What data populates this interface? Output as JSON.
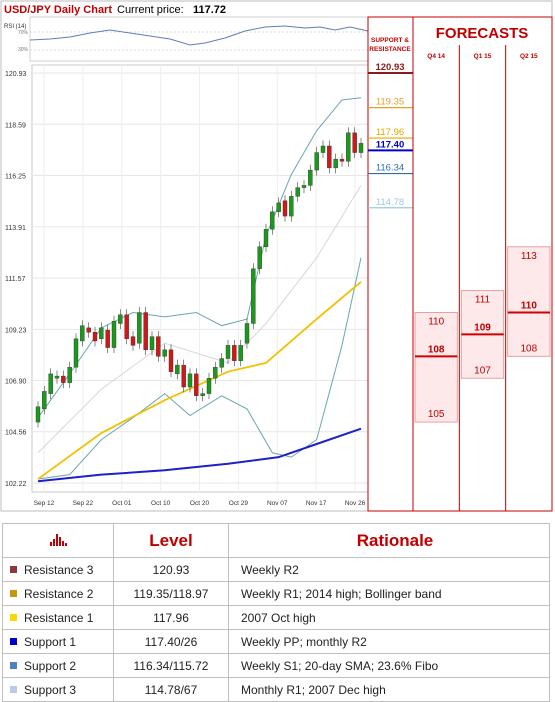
{
  "header": {
    "title": "USD/JPY Daily Chart",
    "price_label": "Current price:",
    "price_value": "117.72"
  },
  "rsi": {
    "label": "RSI (14)",
    "levels": [
      "70%",
      "30%"
    ]
  },
  "chart_data": {
    "type": "candlestick",
    "y_ticks": [
      "120.93",
      "118.59",
      "116.25",
      "113.91",
      "111.57",
      "109.23",
      "106.90",
      "104.56",
      "102.22"
    ],
    "ylim": [
      102.22,
      120.93
    ],
    "x_ticks": [
      "Sep 12",
      "Sep 22",
      "Oct 01",
      "Oct 10",
      "Oct 20",
      "Oct 29",
      "Nov 07",
      "Nov 17",
      "Nov 26"
    ],
    "candles": [
      [
        105.0,
        105.7
      ],
      [
        105.6,
        106.4
      ],
      [
        106.3,
        107.2
      ],
      [
        107.0,
        107.1
      ],
      [
        107.1,
        106.8
      ],
      [
        106.8,
        107.5
      ],
      [
        107.5,
        108.8
      ],
      [
        108.7,
        109.4
      ],
      [
        109.3,
        109.1
      ],
      [
        109.1,
        108.7
      ],
      [
        108.8,
        109.3
      ],
      [
        109.2,
        108.4
      ],
      [
        108.4,
        109.6
      ],
      [
        109.5,
        109.9
      ],
      [
        109.9,
        108.8
      ],
      [
        108.9,
        108.5
      ],
      [
        108.6,
        110.0
      ],
      [
        110.0,
        108.3
      ],
      [
        108.3,
        108.9
      ],
      [
        108.9,
        108.0
      ],
      [
        108.0,
        108.3
      ],
      [
        108.3,
        107.3
      ],
      [
        107.2,
        107.6
      ],
      [
        107.6,
        106.6
      ],
      [
        106.6,
        107.2
      ],
      [
        107.2,
        106.2
      ],
      [
        106.2,
        106.3
      ],
      [
        106.3,
        107.0
      ],
      [
        107.0,
        107.5
      ],
      [
        107.5,
        107.9
      ],
      [
        107.9,
        108.5
      ],
      [
        108.5,
        107.8
      ],
      [
        107.8,
        108.5
      ],
      [
        108.6,
        109.5
      ],
      [
        109.5,
        112.0
      ],
      [
        112.0,
        113.0
      ],
      [
        113.0,
        113.8
      ],
      [
        113.8,
        114.6
      ],
      [
        114.6,
        115.0
      ],
      [
        115.1,
        114.4
      ],
      [
        114.4,
        115.3
      ],
      [
        115.3,
        115.7
      ],
      [
        115.7,
        115.8
      ],
      [
        115.8,
        116.5
      ],
      [
        116.5,
        117.3
      ],
      [
        117.3,
        117.6
      ],
      [
        117.6,
        116.6
      ],
      [
        116.6,
        117.0
      ],
      [
        117.0,
        116.9
      ],
      [
        116.9,
        118.2
      ],
      [
        118.2,
        117.3
      ],
      [
        117.3,
        117.72
      ]
    ],
    "bollinger_upper": [
      [
        0,
        105.2
      ],
      [
        5,
        107.2
      ],
      [
        10,
        109.3
      ],
      [
        15,
        110.0
      ],
      [
        20,
        109.8
      ],
      [
        25,
        110.0
      ],
      [
        29,
        109.4
      ],
      [
        33,
        109.7
      ],
      [
        36,
        113.5
      ],
      [
        40,
        116.3
      ],
      [
        44,
        118.3
      ],
      [
        48,
        119.7
      ],
      [
        51,
        119.8
      ]
    ],
    "bollinger_lower": [
      [
        0,
        102.4
      ],
      [
        5,
        102.6
      ],
      [
        10,
        104.2
      ],
      [
        15,
        105.2
      ],
      [
        20,
        106.3
      ],
      [
        24,
        105.3
      ],
      [
        29,
        106.2
      ],
      [
        33,
        105.6
      ],
      [
        37,
        103.6
      ],
      [
        40,
        103.4
      ],
      [
        44,
        104.2
      ],
      [
        48,
        108.5
      ],
      [
        51,
        112.5
      ]
    ],
    "sma_mid": [
      [
        0,
        103.6
      ],
      [
        10,
        106.5
      ],
      [
        20,
        108.6
      ],
      [
        30,
        107.7
      ],
      [
        36,
        109.5
      ],
      [
        44,
        112.5
      ],
      [
        51,
        115.8
      ]
    ],
    "sma_yellow": [
      [
        0,
        102.4
      ],
      [
        10,
        104.5
      ],
      [
        20,
        106.0
      ],
      [
        30,
        107.3
      ],
      [
        36,
        107.7
      ],
      [
        44,
        109.7
      ],
      [
        51,
        111.4
      ]
    ],
    "sma_blue": [
      [
        0,
        102.3
      ],
      [
        10,
        102.6
      ],
      [
        20,
        102.8
      ],
      [
        30,
        103.1
      ],
      [
        38,
        103.4
      ],
      [
        44,
        104.0
      ],
      [
        51,
        104.7
      ]
    ]
  },
  "levels_panel": {
    "title": "SUPPORT & RESISTANCE",
    "levels": [
      {
        "label": "120.93",
        "value": 120.93,
        "color": "#8b1a1a"
      },
      {
        "label": "119.35",
        "value": 119.35,
        "color": "#e0a030"
      },
      {
        "label": "117.96",
        "value": 117.96,
        "color": "#e0a800"
      },
      {
        "label": "117.40",
        "value": 117.4,
        "color": "#0000cc"
      },
      {
        "label": "116.34",
        "value": 116.34,
        "color": "#2e6ea6"
      },
      {
        "label": "114.78",
        "value": 114.78,
        "color": "#9ac9e0"
      }
    ]
  },
  "forecasts": {
    "title": "FORECASTS",
    "columns": [
      {
        "label": "Q4 14",
        "high": 110,
        "median": 108,
        "low": 105
      },
      {
        "label": "Q1 15",
        "high": 111,
        "median": 109,
        "low": 107
      },
      {
        "label": "Q2 15",
        "high": 113,
        "median": 110,
        "low": 108
      }
    ]
  },
  "table": {
    "headers": [
      "",
      "Level",
      "Rationale"
    ],
    "rows": [
      {
        "name": "Resistance 3",
        "level": "120.93",
        "rationale": "Weekly R2",
        "color": "#8b3a3a"
      },
      {
        "name": "Resistance 2",
        "level": "119.35/118.97",
        "rationale": "Weekly R1; 2014 high; Bollinger band",
        "color": "#c8960c"
      },
      {
        "name": "Resistance 1",
        "level": "117.96",
        "rationale": "2007 Oct high",
        "color": "#ffd700"
      },
      {
        "name": "Support 1",
        "level": "117.40/26",
        "rationale": "Weekly PP; monthly R2",
        "color": "#0000cc"
      },
      {
        "name": "Support 2",
        "level": "116.34/115.72",
        "rationale": "Weekly S1; 20-day SMA; 23.6% Fibo",
        "color": "#4f81bd"
      },
      {
        "name": "Support 3",
        "level": "114.78/67",
        "rationale": "Monthly R1; 2007 Dec high",
        "color": "#b8cce4"
      }
    ]
  }
}
